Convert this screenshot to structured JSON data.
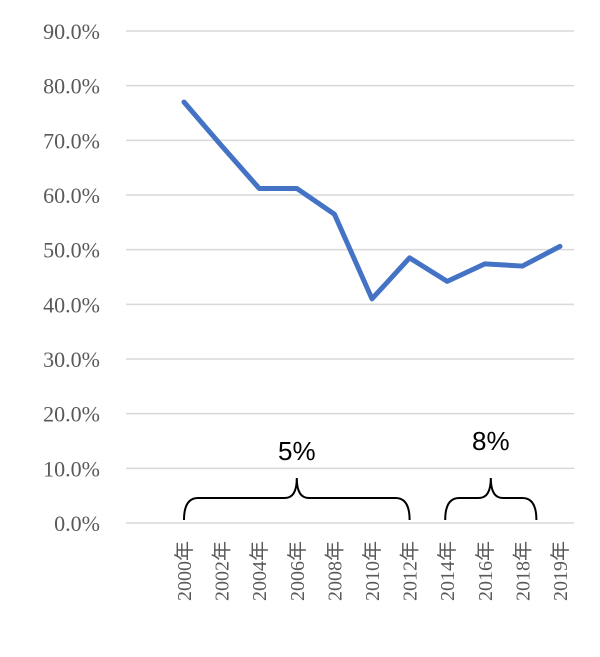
{
  "chart_data": {
    "type": "line",
    "title": "",
    "xlabel": "",
    "ylabel": "",
    "categories": [
      "2000年",
      "2002年",
      "2004年",
      "2006年",
      "2008年",
      "2010年",
      "2012年",
      "2014年",
      "2016年",
      "2018年",
      "2019年"
    ],
    "series": [
      {
        "values": [
          77.0,
          69.0,
          61.2,
          61.2,
          56.5,
          41.0,
          48.5,
          44.2,
          47.4,
          47.0,
          50.6
        ]
      }
    ],
    "ylim": [
      0,
      90
    ],
    "yticks": [
      "0.0%",
      "10.0%",
      "20.0%",
      "30.0%",
      "40.0%",
      "50.0%",
      "60.0%",
      "70.0%",
      "80.0%",
      "90.0%"
    ],
    "grid": true,
    "line_color": "#4472C4",
    "annotations": [
      {
        "text": "5%",
        "from_category": "2000年",
        "to_category": "2012年"
      },
      {
        "text": "8%",
        "from_category": "2014年",
        "to_category": "2018年"
      }
    ]
  }
}
